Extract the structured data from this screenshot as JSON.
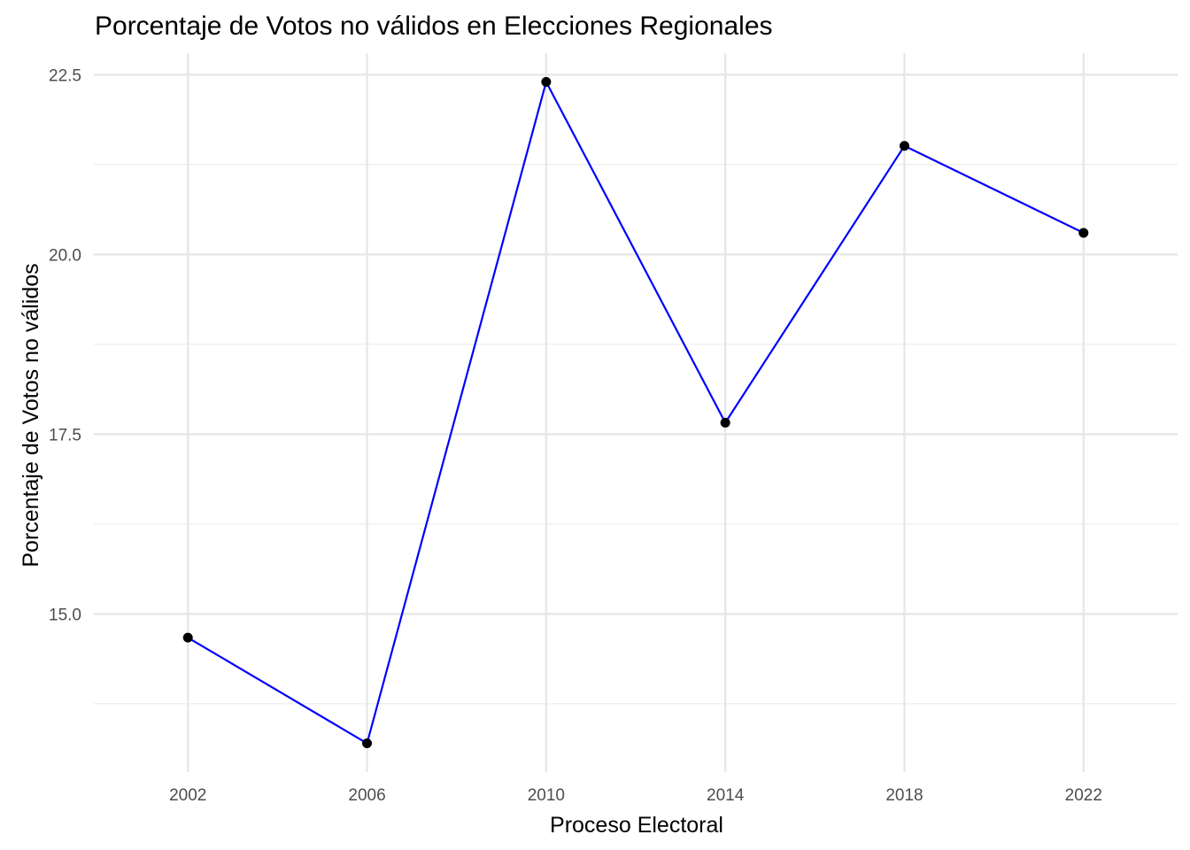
{
  "chart_data": {
    "type": "line",
    "title": "Porcentaje de Votos no válidos en Elecciones Regionales",
    "xlabel": "Proceso Electoral",
    "ylabel": "Porcentaje de Votos no válidos",
    "x": [
      2002,
      2006,
      2010,
      2014,
      2018,
      2022
    ],
    "series": [
      {
        "values": [
          14.67,
          13.2,
          22.4,
          17.66,
          21.51,
          20.3
        ]
      }
    ],
    "x_ticks": [
      "2002",
      "2006",
      "2010",
      "2014",
      "2018",
      "2022"
    ],
    "y_ticks": [
      "15.0",
      "17.5",
      "20.0",
      "22.5"
    ],
    "xlim": [
      1999.9,
      2024.1
    ],
    "ylim": [
      12.8,
      22.8
    ],
    "grid": true,
    "legend": "none",
    "colors": {
      "line": "#0000ff",
      "points": "#000000"
    }
  }
}
